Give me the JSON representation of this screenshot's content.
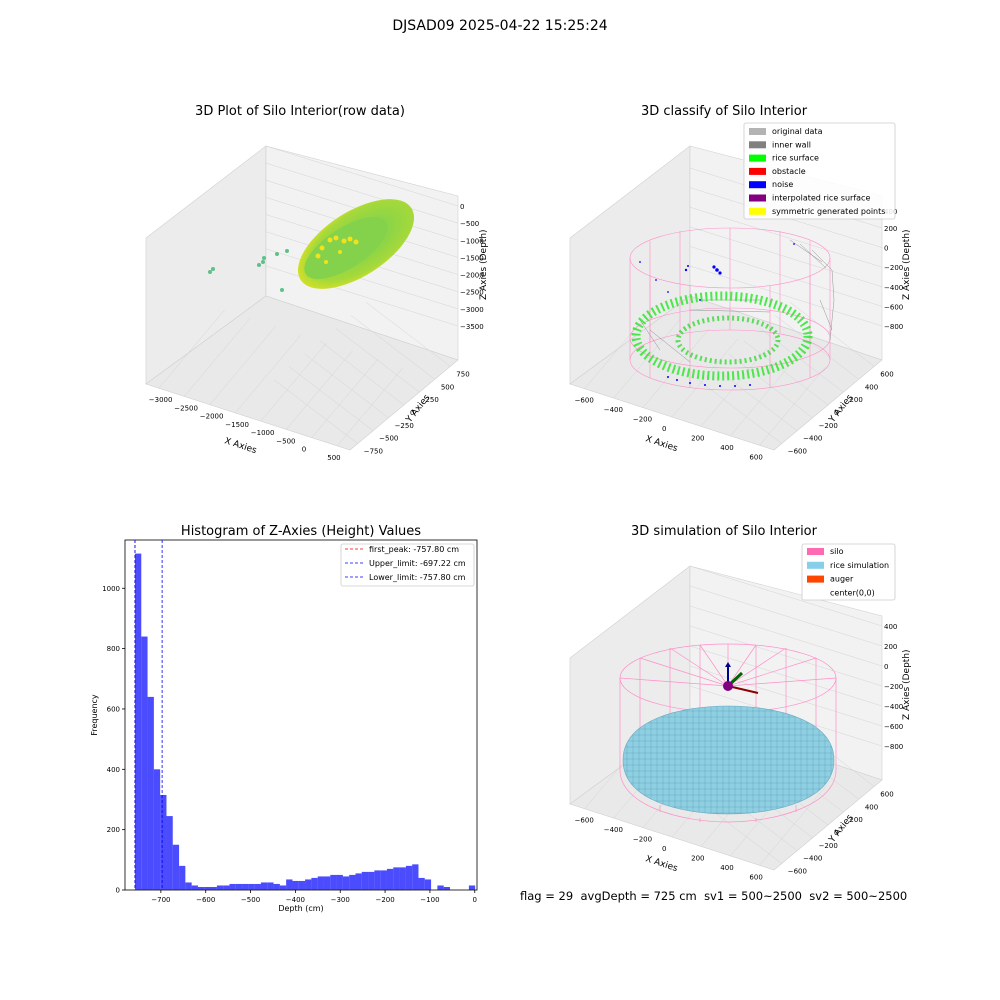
{
  "suptitle": "DJSAD09 2025-04-22 15:25:24",
  "footer": {
    "flag": "flag = 29",
    "avg_depth": "avgDepth = 725 cm",
    "sv1": "sv1 = 500~2500",
    "sv2": "sv2 = 500~2500"
  },
  "panels": {
    "raw": {
      "title": "3D Plot of Silo Interior(row data)",
      "xlabel": "X Axies",
      "ylabel": "Y Axies",
      "zlabel": "Z Axies (Depth)",
      "xticks": [
        "−3000",
        "−2500",
        "−2000",
        "−1500",
        "−1000",
        "−500",
        "0",
        "500"
      ],
      "yticks": [
        "−750",
        "−500",
        "−250",
        "0",
        "250",
        "500",
        "750"
      ],
      "zticks": [
        "0",
        "−500",
        "−1000",
        "−1500",
        "−2000",
        "−2500",
        "−3000",
        "−3500"
      ]
    },
    "classify": {
      "title": "3D classify of Silo Interior",
      "xlabel": "X Axies",
      "ylabel": "Y Axies",
      "zlabel": "Z Axies (Depth)",
      "xticks": [
        "−600",
        "−400",
        "−200",
        "0",
        "200",
        "400",
        "600"
      ],
      "yticks": [
        "−600",
        "−400",
        "−200",
        "0",
        "200",
        "400",
        "600"
      ],
      "zticks": [
        "200",
        "0",
        "−200",
        "−400",
        "−600",
        "−800"
      ],
      "zticks_partial": [
        "400"
      ],
      "legend": [
        {
          "label": "original data",
          "color": "#b3b3b3"
        },
        {
          "label": "inner wall",
          "color": "#808080"
        },
        {
          "label": "rice surface",
          "color": "#00ff00"
        },
        {
          "label": "obstacle",
          "color": "#ff0000"
        },
        {
          "label": "noise",
          "color": "#0000ff"
        },
        {
          "label": "interpolated rice surface",
          "color": "#800080"
        },
        {
          "label": "symmetric generated points",
          "color": "#ffff00"
        }
      ]
    },
    "simulation": {
      "title": "3D simulation of Silo Interior",
      "xlabel": "X Axies",
      "ylabel": "Y Axies",
      "zlabel": "Z Axies (Depth)",
      "xticks": [
        "−600",
        "−400",
        "−200",
        "0",
        "200",
        "400",
        "600"
      ],
      "yticks": [
        "−600",
        "−400",
        "−200",
        "0",
        "200",
        "400",
        "600"
      ],
      "zticks": [
        "400",
        "200",
        "0",
        "−200",
        "−400",
        "−600",
        "−800"
      ],
      "legend": [
        {
          "label": "silo",
          "color": "#ff69b4"
        },
        {
          "label": "rice simulation",
          "color": "#87ceeb"
        },
        {
          "label": "auger",
          "color": "#ff4500"
        },
        {
          "label": "center(0,0)",
          "color": "#ffffff"
        }
      ]
    }
  },
  "chart_data": [
    {
      "type": "histogram",
      "title": "Histogram of Z-Axies (Height) Values",
      "xlabel": "Depth (cm)",
      "ylabel": "Frequency",
      "xlim": [
        -780,
        5
      ],
      "ylim": [
        0,
        1160
      ],
      "xticks": [
        -700,
        -600,
        -500,
        -400,
        -300,
        -200,
        -100,
        0
      ],
      "xtick_labels": [
        "−700",
        "−600",
        "−500",
        "−400",
        "−300",
        "−200",
        "−100",
        "0"
      ],
      "yticks": [
        0,
        200,
        400,
        600,
        800,
        1000
      ],
      "bar_color": "#0000ff",
      "bin_edges": [
        -757.8,
        -743.7,
        -729.7,
        -715.6,
        -701.6,
        -687.5,
        -673.5,
        -659.4,
        -645.4,
        -631.3,
        -617.3,
        -603.2,
        -589.2,
        -575.1,
        -561.1,
        -547.0,
        -533.0,
        -518.9,
        -504.9,
        -490.8,
        -476.8,
        -462.7,
        -448.7,
        -434.6,
        -420.6,
        -406.5,
        -392.5,
        -378.4,
        -364.4,
        -350.3,
        -336.3,
        -322.2,
        -308.2,
        -294.1,
        -280.1,
        -266.0,
        -252.0,
        -237.9,
        -223.9,
        -209.8,
        -195.8,
        -181.7,
        -167.7,
        -153.6,
        -139.6,
        -125.5,
        -111.5,
        -97.4,
        -83.4,
        -69.3,
        -55.3,
        -41.2,
        -27.2,
        -13.1,
        0.9
      ],
      "counts": [
        1115,
        840,
        640,
        400,
        315,
        245,
        150,
        80,
        25,
        15,
        10,
        10,
        10,
        15,
        15,
        20,
        20,
        20,
        20,
        20,
        25,
        25,
        20,
        15,
        35,
        30,
        30,
        35,
        40,
        45,
        45,
        50,
        50,
        45,
        50,
        55,
        60,
        60,
        65,
        65,
        70,
        75,
        75,
        80,
        85,
        40,
        35,
        0,
        15,
        10,
        0,
        0,
        0,
        15
      ],
      "vlines": [
        {
          "name": "first_peak: -757.80 cm",
          "x": -757.8,
          "color": "#ff0000"
        },
        {
          "name": "Upper_limit: -697.22 cm",
          "x": -697.22,
          "color": "#0000ff"
        },
        {
          "name": "Lower_limit: -757.80 cm",
          "x": -757.8,
          "color": "#0000ff"
        }
      ],
      "legend_position": "upper right"
    }
  ]
}
